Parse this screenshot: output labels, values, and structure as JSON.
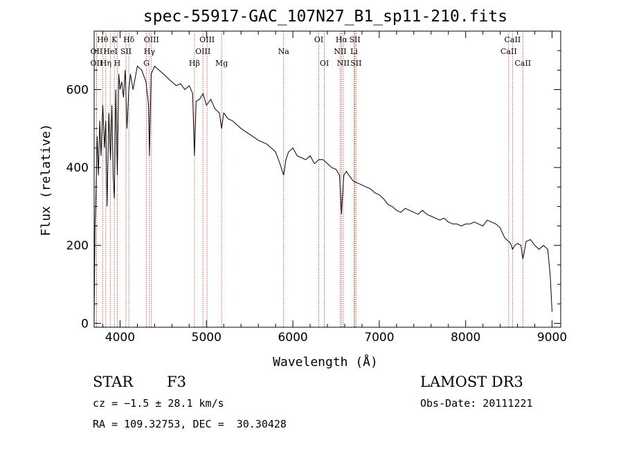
{
  "chart_data": {
    "type": "line",
    "title": "spec-55917-GAC_107N27_B1_sp11-210.fits",
    "xlabel": "Wavelength (Å)",
    "ylabel": "Flux (relative)",
    "xlim": [
      3700,
      9100
    ],
    "ylim": [
      -10,
      750
    ],
    "xticks": [
      4000,
      5000,
      6000,
      7000,
      8000,
      9000
    ],
    "yticks": [
      0,
      200,
      400,
      600
    ],
    "series": [
      {
        "name": "spectrum",
        "x": [
          3700,
          3710,
          3720,
          3735,
          3750,
          3765,
          3780,
          3800,
          3820,
          3835,
          3850,
          3870,
          3889,
          3905,
          3920,
          3934,
          3950,
          3968,
          3985,
          4000,
          4020,
          4040,
          4060,
          4080,
          4101,
          4120,
          4150,
          4200,
          4250,
          4300,
          4330,
          4340,
          4360,
          4400,
          4450,
          4500,
          4550,
          4600,
          4650,
          4700,
          4750,
          4800,
          4840,
          4861,
          4880,
          4920,
          4960,
          5000,
          5050,
          5100,
          5150,
          5175,
          5200,
          5250,
          5300,
          5400,
          5500,
          5600,
          5700,
          5800,
          5850,
          5893,
          5920,
          5950,
          6000,
          6050,
          6100,
          6150,
          6200,
          6250,
          6300,
          6350,
          6400,
          6450,
          6500,
          6540,
          6563,
          6590,
          6620,
          6650,
          6700,
          6750,
          6800,
          6850,
          6900,
          6950,
          7000,
          7050,
          7100,
          7150,
          7200,
          7250,
          7300,
          7350,
          7400,
          7450,
          7500,
          7550,
          7600,
          7650,
          7700,
          7750,
          7800,
          7850,
          7900,
          7950,
          8000,
          8050,
          8100,
          8150,
          8200,
          8250,
          8300,
          8350,
          8400,
          8450,
          8498,
          8520,
          8542,
          8570,
          8600,
          8640,
          8662,
          8700,
          8750,
          8800,
          8850,
          8900,
          8950,
          8980,
          9000
        ],
        "y": [
          10,
          250,
          320,
          480,
          380,
          520,
          430,
          560,
          450,
          520,
          300,
          540,
          420,
          560,
          380,
          320,
          600,
          380,
          640,
          600,
          620,
          580,
          650,
          500,
          600,
          640,
          600,
          660,
          650,
          620,
          560,
          430,
          640,
          660,
          650,
          640,
          630,
          620,
          610,
          615,
          600,
          610,
          590,
          430,
          570,
          575,
          590,
          560,
          575,
          550,
          540,
          500,
          540,
          525,
          520,
          500,
          485,
          470,
          460,
          440,
          410,
          380,
          420,
          440,
          450,
          430,
          425,
          420,
          430,
          410,
          420,
          420,
          410,
          400,
          395,
          380,
          280,
          380,
          390,
          380,
          365,
          360,
          355,
          350,
          345,
          335,
          330,
          320,
          305,
          300,
          290,
          285,
          295,
          290,
          285,
          280,
          290,
          280,
          275,
          270,
          265,
          270,
          260,
          255,
          255,
          250,
          255,
          255,
          260,
          255,
          250,
          265,
          260,
          255,
          245,
          220,
          210,
          205,
          190,
          200,
          205,
          200,
          165,
          210,
          215,
          200,
          190,
          200,
          190,
          120,
          30
        ]
      }
    ],
    "lines": [
      {
        "label": "Hθ",
        "x": 3798,
        "row": 0
      },
      {
        "label": "OII",
        "x": 3727,
        "row": 1
      },
      {
        "label": "OII",
        "x": 3727,
        "row": 2
      },
      {
        "label": "HeI",
        "x": 3889,
        "row": 1
      },
      {
        "label": "Hη",
        "x": 3835,
        "row": 2
      },
      {
        "label": "K",
        "x": 3934,
        "row": 0
      },
      {
        "label": "SII",
        "x": 4068,
        "row": 1
      },
      {
        "label": "H",
        "x": 3968,
        "row": 2
      },
      {
        "label": "Hδ",
        "x": 4102,
        "row": 0
      },
      {
        "label": "OIII",
        "x": 4363,
        "row": 0
      },
      {
        "label": "Hγ",
        "x": 4340,
        "row": 1
      },
      {
        "label": "G",
        "x": 4305,
        "row": 2
      },
      {
        "label": "OIII",
        "x": 5007,
        "row": 0
      },
      {
        "label": "OIII",
        "x": 4959,
        "row": 1
      },
      {
        "label": "Hβ",
        "x": 4861,
        "row": 2
      },
      {
        "label": "Mg",
        "x": 5175,
        "row": 2
      },
      {
        "label": "Na",
        "x": 5893,
        "row": 1
      },
      {
        "label": "OI",
        "x": 6300,
        "row": 0
      },
      {
        "label": "OI",
        "x": 6364,
        "row": 2
      },
      {
        "label": "Hα",
        "x": 6563,
        "row": 0
      },
      {
        "label": "NII",
        "x": 6548,
        "row": 1
      },
      {
        "label": "NII",
        "x": 6584,
        "row": 2
      },
      {
        "label": "SII",
        "x": 6717,
        "row": 0
      },
      {
        "label": "Li",
        "x": 6708,
        "row": 1
      },
      {
        "label": "SII",
        "x": 6731,
        "row": 2
      },
      {
        "label": "CaII",
        "x": 8542,
        "row": 0
      },
      {
        "label": "CaII",
        "x": 8498,
        "row": 1
      },
      {
        "label": "CaII",
        "x": 8662,
        "row": 2
      }
    ]
  },
  "info": {
    "object_class": "STAR",
    "subclass": "F3",
    "survey": "LAMOST DR3",
    "cz": "cz = −1.5 ± 28.1 km/s",
    "obs_date": "Obs-Date: 20111221",
    "coords": "RA = 109.32753, DEC =  30.30428"
  },
  "colors": {
    "spectrum": "#000000",
    "line_marker": "#c0392b",
    "axes": "#000000"
  }
}
